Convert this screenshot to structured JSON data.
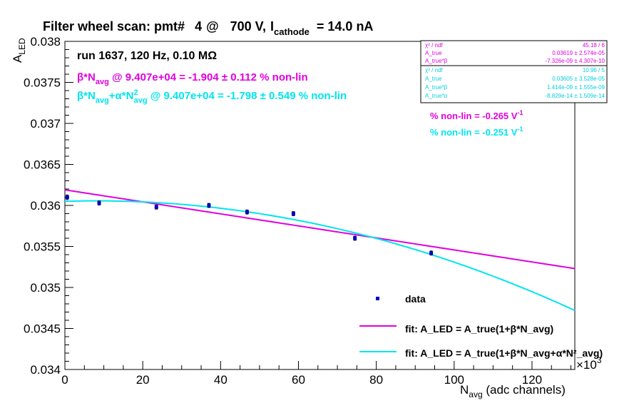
{
  "chart_data": {
    "type": "scatter",
    "title": {
      "prefix": "Filter wheel scan: pmt#",
      "pmt": "4",
      "at": "@",
      "voltage": "700 V,",
      "i_letter": "I",
      "i_sub": "cathode",
      "current": "= 14.0 nA"
    },
    "run_info": "run 1637, 120 Hz, 0.10 MΩ",
    "xlabel": {
      "main": "N",
      "sub": "avg",
      "rest": " (adc channels)"
    },
    "ylabel": {
      "main": "A",
      "sub": "LED"
    },
    "x_multiplier": {
      "base": "×10",
      "exp": "3"
    },
    "xlim": [
      0,
      131
    ],
    "ylim": [
      0.034,
      0.038
    ],
    "x_ticks": [
      0,
      20,
      40,
      60,
      80,
      100,
      120
    ],
    "x_tick_labels": [
      "0",
      "20",
      "40",
      "60",
      "80",
      "100",
      "120"
    ],
    "y_ticks": [
      0.034,
      0.0345,
      0.035,
      0.0355,
      0.036,
      0.0365,
      0.037,
      0.0375,
      0.038
    ],
    "y_tick_labels": [
      "0.034",
      "0.0345",
      "0.035",
      "0.0355",
      "0.036",
      "0.0365",
      "0.037",
      "0.0375",
      "0.038"
    ],
    "data_points": [
      {
        "x": 0.6,
        "y": 0.0361,
        "err": 2.8e-05
      },
      {
        "x": 8.8,
        "y": 0.03603,
        "err": 2.5e-05
      },
      {
        "x": 23.5,
        "y": 0.03598,
        "err": 2.5e-05
      },
      {
        "x": 37.0,
        "y": 0.036,
        "err": 2.5e-05
      },
      {
        "x": 46.8,
        "y": 0.03592,
        "err": 2.5e-05
      },
      {
        "x": 58.7,
        "y": 0.0359,
        "err": 2.5e-05
      },
      {
        "x": 74.5,
        "y": 0.0356,
        "err": 2.5e-05
      },
      {
        "x": 94.1,
        "y": 0.03542,
        "err": 2.5e-05
      }
    ],
    "fit_linear": {
      "A": 0.03619,
      "beta": -7.326e-09,
      "x_start": 0,
      "x_end": 131
    },
    "fit_quad": {
      "A": 0.03605,
      "beta": 1.414e-09,
      "alpha": -8.829e-14,
      "x_start": 0,
      "x_end": 131
    },
    "annotations": {
      "beta_line": {
        "lead": "β*N",
        "sub": "avg",
        "rest": " @ 9.407e+04 = -1.904 ± 0.112 % non-lin"
      },
      "quad_line": {
        "lead": "β*N",
        "sub1": "avg",
        "mid": "+α*N",
        "sup": "2",
        "sub2": "avg",
        "rest": " @ 9.407e+04 = -1.798 ± 0.549 % non-lin"
      },
      "nonlin_magenta": {
        "text": "% non-lin = -0.265 V",
        "sup": "-1"
      },
      "nonlin_cyan": {
        "text": "% non-lin = -0.251 V",
        "sup": "-1"
      }
    },
    "stats_box_1": [
      {
        "label": "χ² / ndf",
        "value": "45.18 / 6"
      },
      {
        "label": "A_true",
        "value": "0.03619 ± 2.574e-05"
      },
      {
        "label": "A_true*β",
        "value": "-7.326e-09 ± 4.307e-10"
      }
    ],
    "stats_box_2": [
      {
        "label": "χ² / ndf",
        "value": "10.96 / 5"
      },
      {
        "label": "A_true",
        "value": "0.03605 ± 3.528e-05"
      },
      {
        "label": "A_true*β",
        "value": "1.414e-09 ± 1.555e-09"
      },
      {
        "label": "A_true*α",
        "value": "-8.829e-14 ± 1.509e-14"
      }
    ],
    "legend": {
      "data": "data",
      "fit1": "fit: A_LED = A_true(1+β*N_avg)",
      "fit2": "fit: A_LED = A_true(1+β*N_avg+α*N²_avg)"
    },
    "colors": {
      "data": "#0000cc",
      "fit_linear": "#e000e0",
      "fit_quad": "#00e5ee",
      "stats1_text": "#e000e0",
      "stats2_text": "#00d0dd"
    }
  }
}
